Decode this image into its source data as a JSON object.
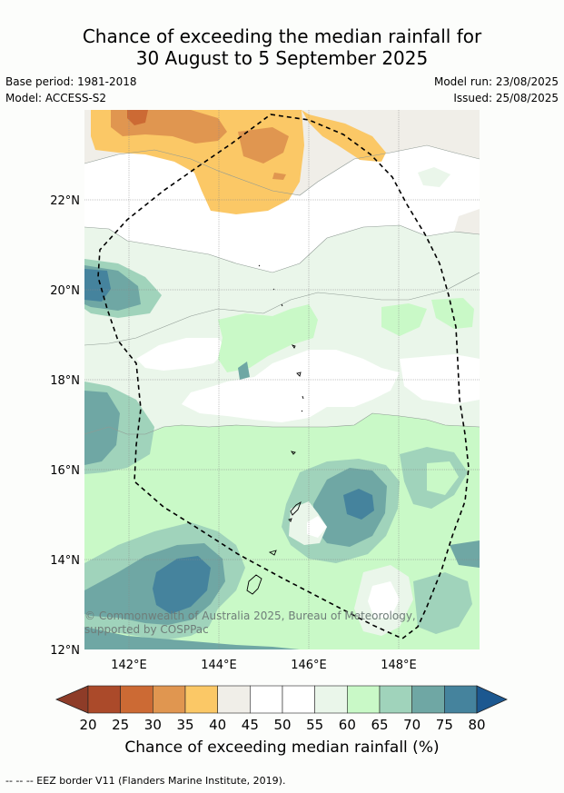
{
  "header": {
    "title_line1": "Chance of exceeding the median rainfall for",
    "title_line2": "30 August to 5 September 2025",
    "base_period": "Base period: 1981-2018",
    "model": "Model: ACCESS-S2",
    "model_run": "Model run: 23/08/2025",
    "issued": "Issued: 25/08/2025"
  },
  "map": {
    "lat_labels": [
      "22°N",
      "20°N",
      "18°N",
      "16°N",
      "14°N",
      "12°N"
    ],
    "lon_labels": [
      "142°E",
      "144°E",
      "146°E",
      "148°E"
    ],
    "copyright": "© Commonwealth of Australia 2025, Bureau of Meteorology, supported by COSPPac"
  },
  "colorbar": {
    "ticks": [
      "20",
      "25",
      "30",
      "35",
      "40",
      "45",
      "50",
      "55",
      "60",
      "65",
      "70",
      "75",
      "80"
    ],
    "colors": [
      "#ab4a2a",
      "#cc6a34",
      "#e09650",
      "#fbc866",
      "#f0eee8",
      "#ffffff",
      "#ffffff",
      "#eaf6ea",
      "#c9f9c7",
      "#a0d3bb",
      "#6fa7a4",
      "#45839d"
    ],
    "under_color": "#8e3c28",
    "over_color": "#1c5890",
    "label": "Chance of exceeding median rainfall (%)"
  },
  "footnote": "--  --  -- EEZ border V11 (Flanders Marine Institute, 2019)."
}
